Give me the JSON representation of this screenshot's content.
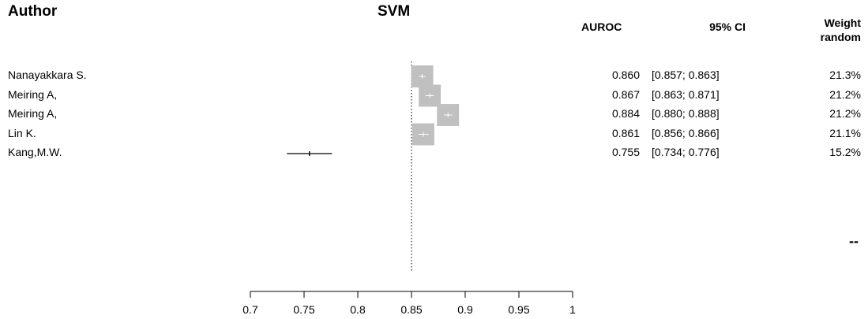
{
  "headers": {
    "author": "Author",
    "auroc": "AUROC",
    "ci": "95% CI",
    "weight_line1": "Weight",
    "weight_line2": "random"
  },
  "trailing_mark": "--",
  "chart_data": {
    "type": "forest",
    "title": "SVM",
    "xlim": [
      0.7,
      1.0
    ],
    "xticks": [
      0.7,
      0.75,
      0.8,
      0.85,
      0.9,
      0.95,
      1.0
    ],
    "xtick_labels": [
      "0.7",
      "0.75",
      "0.8",
      "0.85",
      "0.9",
      "0.95",
      "1"
    ],
    "reference_line": 0.85,
    "studies": [
      {
        "author": "Nanayakkara S.",
        "auroc": 0.86,
        "ci_low": 0.857,
        "ci_high": 0.863,
        "auroc_text": "0.860",
        "ci_text": "[0.857; 0.863]",
        "weight": 21.3,
        "weight_text": "21.3%"
      },
      {
        "author": "Meiring A,",
        "auroc": 0.867,
        "ci_low": 0.863,
        "ci_high": 0.871,
        "auroc_text": "0.867",
        "ci_text": "[0.863; 0.871]",
        "weight": 21.2,
        "weight_text": "21.2%"
      },
      {
        "author": "Meiring A,",
        "auroc": 0.884,
        "ci_low": 0.88,
        "ci_high": 0.888,
        "auroc_text": "0.884",
        "ci_text": "[0.880; 0.888]",
        "weight": 21.2,
        "weight_text": "21.2%"
      },
      {
        "author": "Lin K.",
        "auroc": 0.861,
        "ci_low": 0.856,
        "ci_high": 0.866,
        "auroc_text": "0.861",
        "ci_text": "[0.856; 0.866]",
        "weight": 21.1,
        "weight_text": "21.1%"
      },
      {
        "author": "Kang,M.W.",
        "auroc": 0.755,
        "ci_low": 0.734,
        "ci_high": 0.776,
        "auroc_text": "0.755",
        "ci_text": "[0.734; 0.776]",
        "weight": 15.2,
        "weight_text": "15.2%"
      }
    ]
  }
}
